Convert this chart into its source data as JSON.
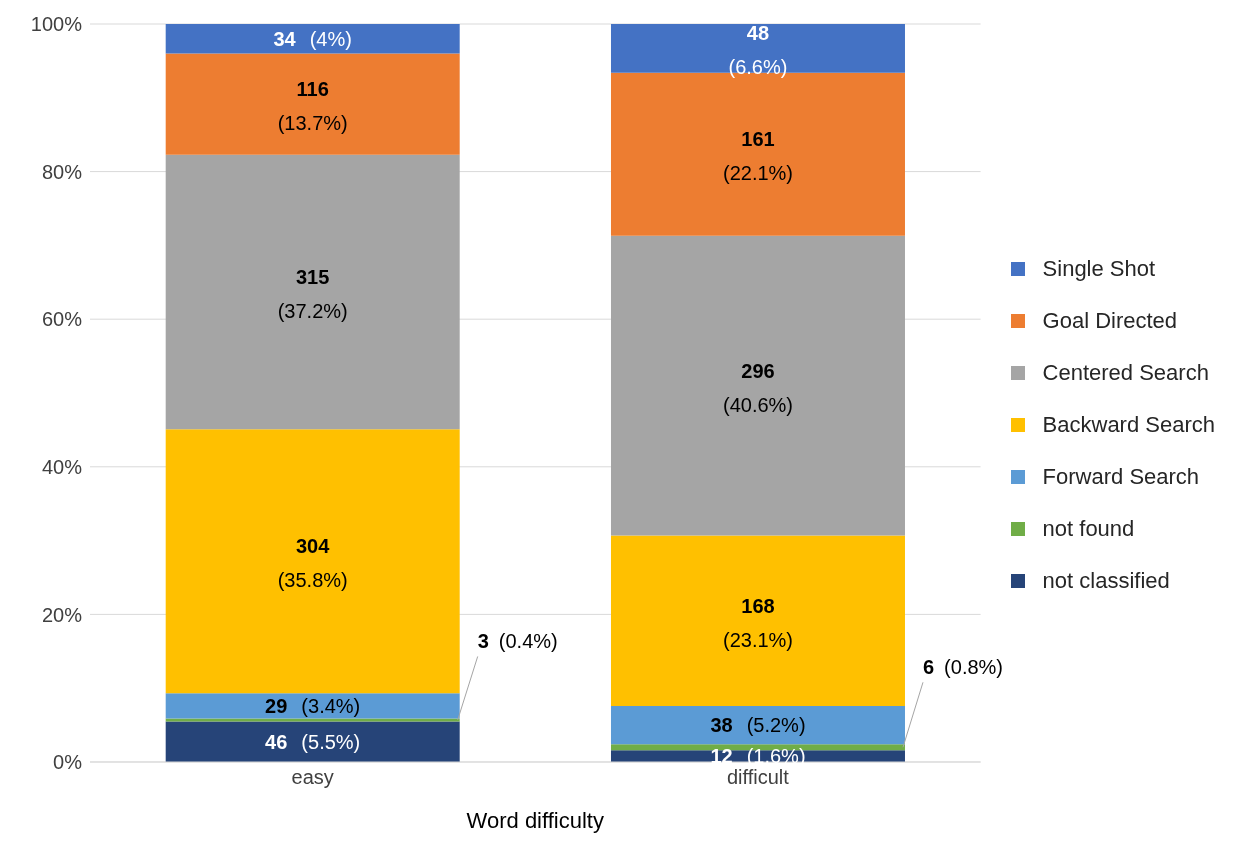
{
  "chart_data": {
    "type": "bar",
    "stacked": true,
    "xlabel": "Word difficulty",
    "categories": [
      "easy",
      "difficult"
    ],
    "series": [
      {
        "name": "not classified",
        "color": "#264478",
        "values": [
          5.5,
          1.6
        ],
        "value_labels": [
          "46 (5.5%)",
          "12 (1.6%)"
        ]
      },
      {
        "name": "not found",
        "color": "#70ad47",
        "values": [
          0.4,
          0.8
        ],
        "value_labels": [
          "3 (0.4%)",
          "6 (0.8%)"
        ]
      },
      {
        "name": "Forward Search",
        "color": "#5b9bd5",
        "values": [
          3.4,
          5.2
        ],
        "value_labels": [
          "29 (3.4%)",
          "38 (5.2%)"
        ]
      },
      {
        "name": "Backward Search",
        "color": "#ffc000",
        "values": [
          35.8,
          23.1
        ],
        "value_labels": [
          "304 (35.8%)",
          "168 (23.1%)"
        ]
      },
      {
        "name": "Centered Search",
        "color": "#a5a5a5",
        "values": [
          37.2,
          40.6
        ],
        "value_labels": [
          "315 (37.2%)",
          "296 (40.6%)"
        ]
      },
      {
        "name": "Goal Directed",
        "color": "#ed7d31",
        "values": [
          13.7,
          22.1
        ],
        "value_labels": [
          "116 (13.7%)",
          "161 (22.1%)"
        ]
      },
      {
        "name": "Single Shot",
        "color": "#4472c4",
        "values": [
          4,
          6.6
        ],
        "value_labels": [
          "34 (4%)",
          "48 (6.6%)"
        ]
      }
    ],
    "ylim": [
      0,
      100
    ],
    "yticks": [
      {
        "value": 0,
        "label": "0%"
      },
      {
        "value": 20,
        "label": "20%"
      },
      {
        "value": 40,
        "label": "40%"
      },
      {
        "value": 60,
        "label": "60%"
      },
      {
        "value": 80,
        "label": "80%"
      },
      {
        "value": 100,
        "label": "100%"
      }
    ],
    "grid": "y",
    "legend": "right"
  }
}
